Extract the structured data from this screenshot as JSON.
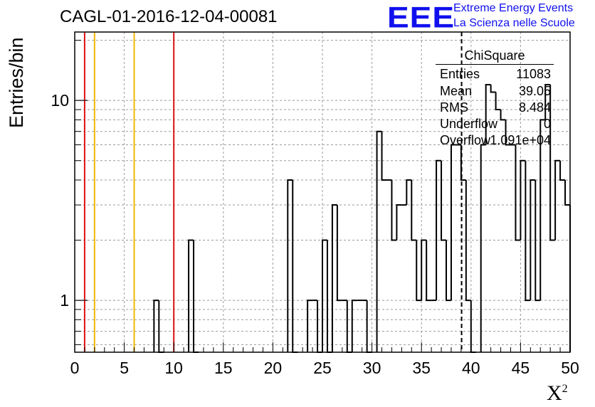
{
  "title": "CAGL-01-2016-12-04-00081",
  "logo": {
    "text": "EEE",
    "line1": "Extreme Energy Events",
    "line2": "La Scienza nelle Scuole",
    "color": "#1010ee"
  },
  "stats": {
    "name": "ChiSquare",
    "rows": [
      {
        "label": "Entries",
        "value": "11083"
      },
      {
        "label": "Mean",
        "value": "39.05"
      },
      {
        "label": "RMS",
        "value": "8.484"
      },
      {
        "label": "Underflow",
        "value": "0"
      },
      {
        "label": "Overflow",
        "value": "1.091e+04"
      }
    ]
  },
  "chart_data": {
    "type": "histogram",
    "xlabel": "X",
    "xlabel_sup": "2",
    "ylabel": "Entries/bin",
    "xlim": [
      0,
      50
    ],
    "ylim": [
      0.55,
      22
    ],
    "yscale": "log",
    "grid": true,
    "bin_width": 0.5,
    "x_ticks": [
      "0",
      "5",
      "10",
      "15",
      "20",
      "25",
      "30",
      "35",
      "40",
      "45",
      "50"
    ],
    "y_ticks": [
      "1",
      "10"
    ],
    "bins": [
      {
        "x": 8.0,
        "y": 1
      },
      {
        "x": 11.5,
        "y": 2
      },
      {
        "x": 21.5,
        "y": 4
      },
      {
        "x": 23.5,
        "y": 1
      },
      {
        "x": 24.0,
        "y": 1
      },
      {
        "x": 25.0,
        "y": 2
      },
      {
        "x": 26.0,
        "y": 3
      },
      {
        "x": 26.5,
        "y": 1
      },
      {
        "x": 27.0,
        "y": 1
      },
      {
        "x": 28.0,
        "y": 1
      },
      {
        "x": 28.5,
        "y": 1
      },
      {
        "x": 29.0,
        "y": 1
      },
      {
        "x": 30.5,
        "y": 7
      },
      {
        "x": 31.0,
        "y": 4
      },
      {
        "x": 31.5,
        "y": 4
      },
      {
        "x": 32.0,
        "y": 2
      },
      {
        "x": 32.5,
        "y": 3
      },
      {
        "x": 33.0,
        "y": 3
      },
      {
        "x": 33.5,
        "y": 4
      },
      {
        "x": 34.0,
        "y": 2
      },
      {
        "x": 34.5,
        "y": 1
      },
      {
        "x": 35.0,
        "y": 2
      },
      {
        "x": 35.5,
        "y": 1
      },
      {
        "x": 36.0,
        "y": 1
      },
      {
        "x": 36.5,
        "y": 5
      },
      {
        "x": 37.0,
        "y": 2
      },
      {
        "x": 37.5,
        "y": 1
      },
      {
        "x": 38.0,
        "y": 6
      },
      {
        "x": 38.5,
        "y": 6
      },
      {
        "x": 39.0,
        "y": 4
      },
      {
        "x": 39.5,
        "y": 1
      },
      {
        "x": 41.0,
        "y": 6
      },
      {
        "x": 41.5,
        "y": 12
      },
      {
        "x": 42.0,
        "y": 11
      },
      {
        "x": 42.5,
        "y": 9
      },
      {
        "x": 43.0,
        "y": 8
      },
      {
        "x": 43.5,
        "y": 6
      },
      {
        "x": 44.0,
        "y": 6
      },
      {
        "x": 44.5,
        "y": 2
      },
      {
        "x": 45.0,
        "y": 5
      },
      {
        "x": 45.5,
        "y": 1
      },
      {
        "x": 46.0,
        "y": 4
      },
      {
        "x": 46.5,
        "y": 1
      },
      {
        "x": 47.0,
        "y": 8
      },
      {
        "x": 47.5,
        "y": 12
      },
      {
        "x": 48.0,
        "y": 2
      },
      {
        "x": 48.5,
        "y": 5
      },
      {
        "x": 49.0,
        "y": 4
      },
      {
        "x": 49.5,
        "y": 3
      }
    ],
    "reference_lines": [
      {
        "x": 1,
        "color": "#dd1111"
      },
      {
        "x": 2,
        "color": "#f2b705"
      },
      {
        "x": 6,
        "color": "#f2b705"
      },
      {
        "x": 10,
        "color": "#dd1111"
      }
    ],
    "mean_line": {
      "x": 39.05,
      "style": "dashed",
      "color": "#000000"
    }
  }
}
